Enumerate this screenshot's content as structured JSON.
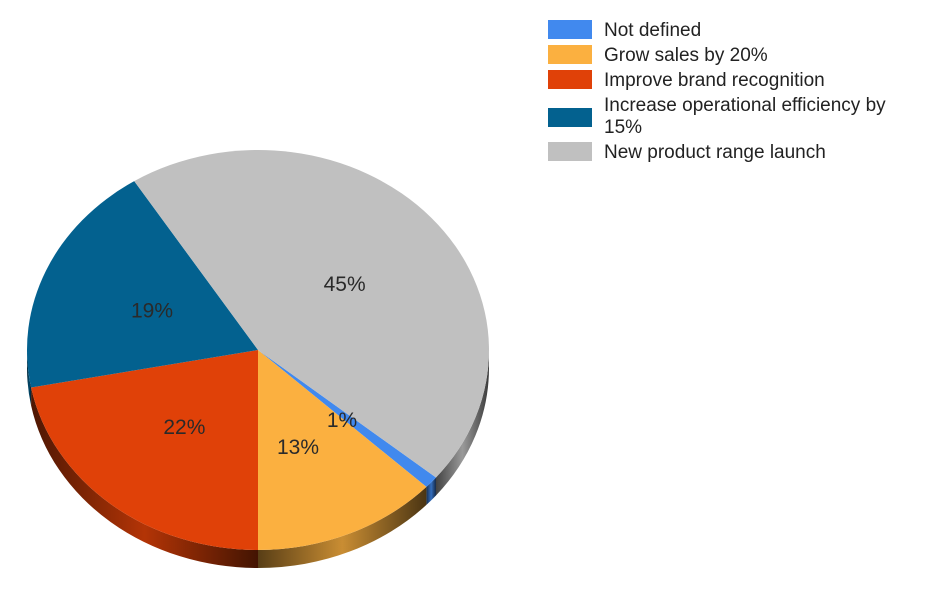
{
  "chart_data": {
    "type": "pie",
    "style": "3d",
    "legend_position": "top-right",
    "start_angle_deg": 39.6,
    "slices": [
      {
        "label": "Not defined",
        "value": 1,
        "display": "1%",
        "color": "#4189ee"
      },
      {
        "label": "Grow sales by 20%",
        "value": 13,
        "display": "13%",
        "color": "#fbb040"
      },
      {
        "label": "Improve brand recognition",
        "value": 22,
        "display": "22%",
        "color": "#e04108"
      },
      {
        "label": "Increase operational efficiency by 15%",
        "value": 19,
        "display": "19%",
        "color": "#03618f"
      },
      {
        "label": "New product range launch",
        "value": 45,
        "display": "45%",
        "color": "#c0c0c0"
      }
    ]
  }
}
